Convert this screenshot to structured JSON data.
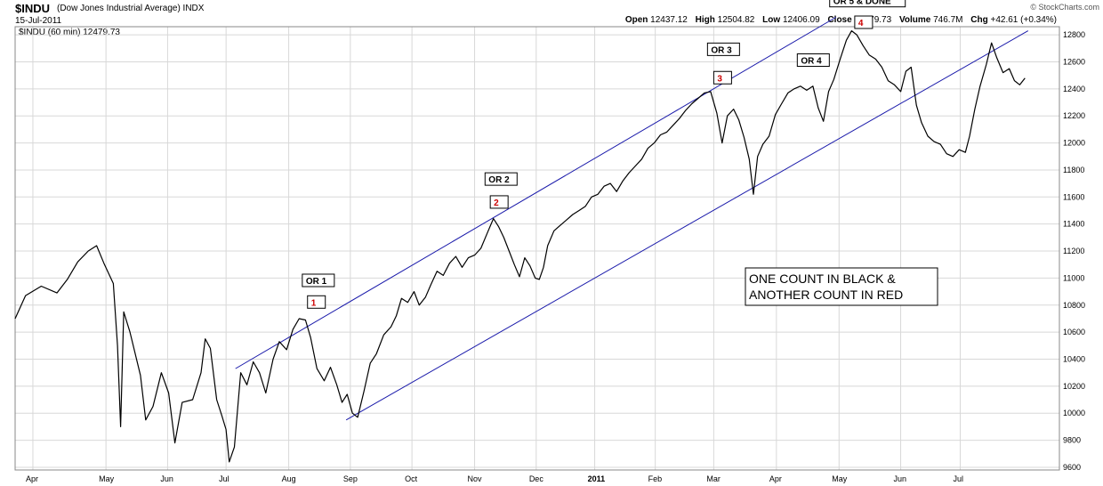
{
  "header": {
    "symbol": "$INDU",
    "description": "(Dow Jones Industrial Average) INDX",
    "date": "15-Jul-2011",
    "open_label": "Open",
    "open": "12437.12",
    "high_label": "High",
    "high": "12504.82",
    "low_label": "Low",
    "low": "12406.09",
    "close_label": "Close",
    "close": "12479.73",
    "volume_label": "Volume",
    "volume": "746.7M",
    "chg_label": "Chg",
    "chg": "+42.61 (+0.34%)",
    "credit": "© StockCharts.com",
    "legend": "$INDU (60 min) 12479.73"
  },
  "colors": {
    "price": "#000000",
    "channel": "#1a1aaa",
    "grid": "#d8d8d8",
    "red": "#cc0000"
  },
  "chart_data": {
    "type": "line",
    "y_ticks": [
      9600,
      9800,
      10000,
      10200,
      10400,
      10600,
      10800,
      11000,
      11200,
      11400,
      11600,
      11800,
      12000,
      12200,
      12400,
      12600,
      12800
    ],
    "ylim": [
      9580,
      12860
    ],
    "x_ticks": [
      "Apr",
      "May",
      "Jun",
      "Jul",
      "Aug",
      "Sep",
      "Oct",
      "Nov",
      "Dec",
      "2011",
      "Feb",
      "Mar",
      "Apr",
      "May",
      "Jun",
      "Jul"
    ],
    "x_tick_bold": "2011",
    "x_domain": [
      0,
      100
    ],
    "x_tick_positions": [
      1.7,
      8.7,
      14.6,
      20.2,
      26.2,
      32.1,
      38.0,
      44.0,
      49.9,
      55.5,
      61.3,
      66.9,
      72.9,
      78.9,
      84.8,
      90.5
    ],
    "series": [
      {
        "values": [
          [
            0.0,
            10700
          ],
          [
            1.0,
            10870
          ],
          [
            2.5,
            10940
          ],
          [
            4.0,
            10890
          ],
          [
            5.0,
            10990
          ],
          [
            6.0,
            11120
          ],
          [
            7.0,
            11200
          ],
          [
            7.8,
            11240
          ],
          [
            8.5,
            11110
          ],
          [
            9.4,
            10960
          ],
          [
            9.8,
            10500
          ],
          [
            10.1,
            9900
          ],
          [
            10.4,
            10750
          ],
          [
            11.0,
            10600
          ],
          [
            12.0,
            10280
          ],
          [
            12.5,
            9950
          ],
          [
            13.2,
            10050
          ],
          [
            14.0,
            10300
          ],
          [
            14.7,
            10150
          ],
          [
            15.3,
            9780
          ],
          [
            16.0,
            10080
          ],
          [
            17.0,
            10100
          ],
          [
            17.8,
            10300
          ],
          [
            18.2,
            10550
          ],
          [
            18.7,
            10480
          ],
          [
            19.3,
            10100
          ],
          [
            19.8,
            9980
          ],
          [
            20.2,
            9880
          ],
          [
            20.5,
            9640
          ],
          [
            21.0,
            9750
          ],
          [
            21.6,
            10300
          ],
          [
            22.2,
            10210
          ],
          [
            22.8,
            10380
          ],
          [
            23.4,
            10300
          ],
          [
            24.0,
            10150
          ],
          [
            24.7,
            10400
          ],
          [
            25.3,
            10530
          ],
          [
            26.0,
            10470
          ],
          [
            26.6,
            10620
          ],
          [
            27.2,
            10700
          ],
          [
            27.8,
            10690
          ],
          [
            28.3,
            10560
          ],
          [
            28.9,
            10330
          ],
          [
            29.6,
            10240
          ],
          [
            30.2,
            10340
          ],
          [
            30.8,
            10210
          ],
          [
            31.3,
            10080
          ],
          [
            31.8,
            10140
          ],
          [
            32.3,
            10000
          ],
          [
            32.8,
            9970
          ],
          [
            33.4,
            10160
          ],
          [
            34.0,
            10370
          ],
          [
            34.6,
            10440
          ],
          [
            35.3,
            10580
          ],
          [
            36.0,
            10640
          ],
          [
            36.5,
            10720
          ],
          [
            37.0,
            10850
          ],
          [
            37.6,
            10820
          ],
          [
            38.2,
            10900
          ],
          [
            38.7,
            10800
          ],
          [
            39.3,
            10860
          ],
          [
            39.8,
            10950
          ],
          [
            40.4,
            11050
          ],
          [
            41.0,
            11020
          ],
          [
            41.6,
            11110
          ],
          [
            42.2,
            11160
          ],
          [
            42.8,
            11080
          ],
          [
            43.4,
            11150
          ],
          [
            44.0,
            11170
          ],
          [
            44.6,
            11220
          ],
          [
            45.2,
            11330
          ],
          [
            45.8,
            11440
          ],
          [
            46.3,
            11380
          ],
          [
            46.8,
            11300
          ],
          [
            47.3,
            11200
          ],
          [
            47.8,
            11100
          ],
          [
            48.3,
            11010
          ],
          [
            48.8,
            11150
          ],
          [
            49.3,
            11090
          ],
          [
            49.8,
            11000
          ],
          [
            50.2,
            10990
          ],
          [
            50.6,
            11080
          ],
          [
            51.0,
            11240
          ],
          [
            51.6,
            11350
          ],
          [
            52.2,
            11390
          ],
          [
            52.8,
            11430
          ],
          [
            53.4,
            11470
          ],
          [
            54.0,
            11500
          ],
          [
            54.6,
            11530
          ],
          [
            55.2,
            11600
          ],
          [
            55.8,
            11620
          ],
          [
            56.4,
            11680
          ],
          [
            57.0,
            11700
          ],
          [
            57.6,
            11640
          ],
          [
            58.2,
            11720
          ],
          [
            58.8,
            11780
          ],
          [
            59.4,
            11830
          ],
          [
            60.0,
            11880
          ],
          [
            60.6,
            11960
          ],
          [
            61.2,
            12000
          ],
          [
            61.8,
            12060
          ],
          [
            62.4,
            12080
          ],
          [
            63.0,
            12130
          ],
          [
            63.6,
            12180
          ],
          [
            64.2,
            12240
          ],
          [
            64.8,
            12290
          ],
          [
            65.4,
            12330
          ],
          [
            66.0,
            12370
          ],
          [
            66.6,
            12380
          ],
          [
            67.2,
            12220
          ],
          [
            67.7,
            12000
          ],
          [
            68.2,
            12200
          ],
          [
            68.8,
            12250
          ],
          [
            69.3,
            12170
          ],
          [
            69.8,
            12040
          ],
          [
            70.3,
            11880
          ],
          [
            70.7,
            11620
          ],
          [
            71.1,
            11900
          ],
          [
            71.6,
            11990
          ],
          [
            72.2,
            12050
          ],
          [
            72.8,
            12210
          ],
          [
            73.4,
            12290
          ],
          [
            74.0,
            12370
          ],
          [
            74.6,
            12400
          ],
          [
            75.2,
            12420
          ],
          [
            75.8,
            12390
          ],
          [
            76.4,
            12420
          ],
          [
            76.9,
            12260
          ],
          [
            77.4,
            12160
          ],
          [
            77.9,
            12380
          ],
          [
            78.4,
            12470
          ],
          [
            79.0,
            12620
          ],
          [
            79.6,
            12760
          ],
          [
            80.1,
            12830
          ],
          [
            80.6,
            12800
          ],
          [
            81.2,
            12720
          ],
          [
            81.8,
            12650
          ],
          [
            82.4,
            12620
          ],
          [
            83.0,
            12560
          ],
          [
            83.6,
            12460
          ],
          [
            84.2,
            12430
          ],
          [
            84.8,
            12380
          ],
          [
            85.3,
            12530
          ],
          [
            85.8,
            12560
          ],
          [
            86.3,
            12280
          ],
          [
            86.8,
            12150
          ],
          [
            87.4,
            12050
          ],
          [
            88.0,
            12010
          ],
          [
            88.6,
            11990
          ],
          [
            89.2,
            11920
          ],
          [
            89.8,
            11900
          ],
          [
            90.4,
            11950
          ],
          [
            91.0,
            11930
          ],
          [
            91.4,
            12050
          ],
          [
            91.9,
            12250
          ],
          [
            92.4,
            12420
          ],
          [
            93.0,
            12580
          ],
          [
            93.5,
            12740
          ],
          [
            94.0,
            12630
          ],
          [
            94.6,
            12520
          ],
          [
            95.2,
            12550
          ],
          [
            95.7,
            12460
          ],
          [
            96.2,
            12430
          ],
          [
            96.7,
            12480
          ]
        ]
      }
    ],
    "channel_lines": [
      {
        "from": [
          21.1,
          10330
        ],
        "to": [
          78.6,
          12930
        ]
      },
      {
        "from": [
          31.7,
          9950
        ],
        "to": [
          97.0,
          12830
        ]
      }
    ],
    "annotations": [
      {
        "label": "OR 1",
        "x": 27.5,
        "y": 10950
      },
      {
        "label": "OR 2",
        "x": 45.0,
        "y": 11700
      },
      {
        "label": "OR 3",
        "x": 66.3,
        "y": 12660
      },
      {
        "label": "OR 4",
        "x": 74.9,
        "y": 12580
      },
      {
        "label": "OR 5 & DONE",
        "x": 78.0,
        "y": 13020
      }
    ],
    "red_markers": [
      {
        "label": "1",
        "x": 28.0,
        "y": 10790
      },
      {
        "label": "2",
        "x": 45.5,
        "y": 11530
      },
      {
        "label": "3",
        "x": 66.9,
        "y": 12450
      },
      {
        "label": "4",
        "x": 80.4,
        "y": 12860
      }
    ],
    "note_lines": [
      "ONE COUNT IN BLACK &",
      "ANOTHER COUNT IN RED"
    ]
  }
}
